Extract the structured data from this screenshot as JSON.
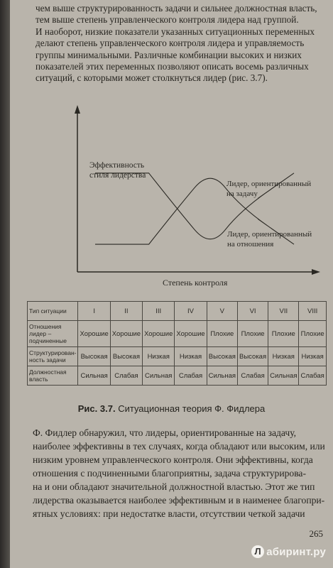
{
  "top_paragraph": [
    "чем выше структурированность задачи и сильнее должностная власть,",
    "тем выше степень управленческого контроля лидера над группой.",
    "И наоборот, низкие показатели указанных ситуационных переменных",
    "делают степень управленческого контроля лидера и управляемость",
    "группы минимальными. Различные комбинации высоких и низких",
    "показателей этих переменных позволяют описать восемь различных",
    "ситуаций, с которыми может столкнуться лидер (рис. 3.7)."
  ],
  "chart_data": {
    "type": "line",
    "ylabel": "Эффективность стиля лидерства",
    "xlabel": "Степень контроля",
    "series": [
      {
        "name": "Лидер, ориентированный на задачу",
        "x": [
          0,
          0.27,
          0.42,
          0.58,
          0.73,
          1
        ],
        "y": [
          0.9,
          0.9,
          0.45,
          0,
          0.45,
          0.9
        ]
      },
      {
        "name": "Лидер, ориентированный на отношения",
        "x": [
          0,
          0.27,
          0.42,
          0.58,
          0.73,
          1
        ],
        "y": [
          0.05,
          0.05,
          0.5,
          0.95,
          0.5,
          0.05
        ]
      }
    ]
  },
  "table": {
    "header": [
      "Тип ситуации",
      "I",
      "II",
      "III",
      "IV",
      "V",
      "VI",
      "VII",
      "VIII"
    ],
    "rows": [
      {
        "label": "Отношения лидер – подчиненные",
        "cells": [
          "Хорошие",
          "Хорошие",
          "Хорошие",
          "Хорошие",
          "Плохие",
          "Плохие",
          "Плохие",
          "Плохие"
        ]
      },
      {
        "label": "Структурирован-ность задачи",
        "cells": [
          "Высокая",
          "Высокая",
          "Низкая",
          "Низкая",
          "Высокая",
          "Высокая",
          "Низкая",
          "Низкая"
        ]
      },
      {
        "label": "Должностная власть",
        "cells": [
          "Сильная",
          "Слабая",
          "Сильная",
          "Слабая",
          "Сильная",
          "Слабая",
          "Сильная",
          "Слабая"
        ]
      }
    ]
  },
  "caption": {
    "label": "Рис. 3.7.",
    "text": "Ситуационная теория Ф. Фидлера"
  },
  "bottom_paragraph": [
    "Ф. Фидлер обнаружил, что лидеры, ориентированные на задачу,",
    "наиболее эффективны в тех случаях, когда обладают или высоким, или",
    "низким уровнем управленческого контроля. Они эффективны, когда",
    "отношения с подчиненными благоприятны, задача структурирова-",
    "на и они обладают значительной должностной властью. Этот же тип",
    "лидерства оказывается наиболее эффективным и в наименее благопри-",
    "ятных условиях: при недостатке власти, отсутствии четкой задачи"
  ],
  "page_number": "265",
  "watermark": "абиринт.ру",
  "watermark_badge": "Л"
}
